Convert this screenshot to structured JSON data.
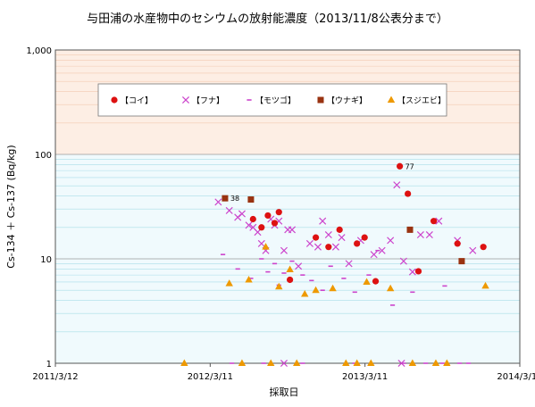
{
  "chart_data": {
    "type": "scatter",
    "title": "与田浦の水産物中のセシウムの放射能濃度（2013/11/8公表分まで）",
    "xlabel": "採取日",
    "ylabel": "Cs-134 ＋ Cs-137 (Bq/kg)",
    "yscale": "log",
    "ylim": [
      1,
      1000
    ],
    "xlim": [
      "2011/3/12",
      "2014/3/11"
    ],
    "y_ticks": [
      {
        "value": 1,
        "label": "1"
      },
      {
        "value": 10,
        "label": "10"
      },
      {
        "value": 100,
        "label": "100"
      },
      {
        "value": 1000,
        "label": "1,000"
      }
    ],
    "x_ticks": [
      {
        "value": "2011/3/12",
        "label": "2011/3/12"
      },
      {
        "value": "2012/3/11",
        "label": "2012/3/11"
      },
      {
        "value": "2013/3/11",
        "label": "2013/3/11"
      },
      {
        "value": "2014/3/11",
        "label": "2014/3/11"
      }
    ],
    "legend_position": "top",
    "series": [
      {
        "name": "【コイ】",
        "marker": "circle",
        "color": "#dd1111",
        "points": [
          {
            "x": "2012/6/20",
            "y": 24
          },
          {
            "x": "2012/7/10",
            "y": 20
          },
          {
            "x": "2012/7/25",
            "y": 26
          },
          {
            "x": "2012/8/10",
            "y": 22
          },
          {
            "x": "2012/8/20",
            "y": 28
          },
          {
            "x": "2012/9/15",
            "y": 6.3
          },
          {
            "x": "2012/11/15",
            "y": 16
          },
          {
            "x": "2012/12/15",
            "y": 13
          },
          {
            "x": "2013/1/10",
            "y": 19
          },
          {
            "x": "2013/2/20",
            "y": 14
          },
          {
            "x": "2013/3/10",
            "y": 16
          },
          {
            "x": "2013/4/5",
            "y": 6.1
          },
          {
            "x": "2013/6/1",
            "y": 77
          },
          {
            "x": "2013/6/20",
            "y": 42
          },
          {
            "x": "2013/7/15",
            "y": 7.6
          },
          {
            "x": "2013/8/20",
            "y": 23
          },
          {
            "x": "2013/10/15",
            "y": 14
          },
          {
            "x": "2013/12/15",
            "y": 13
          }
        ]
      },
      {
        "name": "【フナ】",
        "marker": "x",
        "color": "#cc44cc",
        "points": [
          {
            "x": "2012/3/30",
            "y": 35
          },
          {
            "x": "2012/4/25",
            "y": 29
          },
          {
            "x": "2012/5/15",
            "y": 25
          },
          {
            "x": "2012/5/25",
            "y": 27
          },
          {
            "x": "2012/6/10",
            "y": 21
          },
          {
            "x": "2012/6/20",
            "y": 20
          },
          {
            "x": "2012/7/1",
            "y": 18
          },
          {
            "x": "2012/7/10",
            "y": 14
          },
          {
            "x": "2012/7/20",
            "y": 12
          },
          {
            "x": "2012/8/1",
            "y": 24
          },
          {
            "x": "2012/8/10",
            "y": 21
          },
          {
            "x": "2012/8/20",
            "y": 23
          },
          {
            "x": "2012/9/1",
            "y": 12
          },
          {
            "x": "2012/9/10",
            "y": 19
          },
          {
            "x": "2012/9/20",
            "y": 19
          },
          {
            "x": "2012/10/5",
            "y": 8.5
          },
          {
            "x": "2012/11/1",
            "y": 14
          },
          {
            "x": "2012/11/20",
            "y": 13
          },
          {
            "x": "2012/12/1",
            "y": 23
          },
          {
            "x": "2012/12/15",
            "y": 17
          },
          {
            "x": "2013/1/1",
            "y": 13
          },
          {
            "x": "2013/1/15",
            "y": 16
          },
          {
            "x": "2013/2/1",
            "y": 9
          },
          {
            "x": "2013/3/1",
            "y": 15
          },
          {
            "x": "2013/4/1",
            "y": 11
          },
          {
            "x": "2013/4/20",
            "y": 12
          },
          {
            "x": "2013/5/10",
            "y": 15
          },
          {
            "x": "2013/5/25",
            "y": 51
          },
          {
            "x": "2013/6/10",
            "y": 9.5
          },
          {
            "x": "2013/7/1",
            "y": 7.5
          },
          {
            "x": "2013/7/20",
            "y": 17
          },
          {
            "x": "2013/8/10",
            "y": 17
          },
          {
            "x": "2013/9/1",
            "y": 23
          },
          {
            "x": "2013/10/15",
            "y": 15
          },
          {
            "x": "2013/11/20",
            "y": 12
          },
          {
            "x": "2012/9/1",
            "y": 1
          },
          {
            "x": "2013/6/5",
            "y": 1
          }
        ]
      },
      {
        "name": "【モツゴ】",
        "marker": "dash",
        "color": "#cc44cc",
        "points": [
          {
            "x": "2012/4/10",
            "y": 11
          },
          {
            "x": "2012/5/15",
            "y": 8
          },
          {
            "x": "2012/6/15",
            "y": 6.5
          },
          {
            "x": "2012/7/10",
            "y": 10
          },
          {
            "x": "2012/7/25",
            "y": 7.5
          },
          {
            "x": "2012/8/10",
            "y": 9
          },
          {
            "x": "2012/8/20",
            "y": 5.6
          },
          {
            "x": "2012/9/1",
            "y": 7.3
          },
          {
            "x": "2012/9/20",
            "y": 9.5
          },
          {
            "x": "2012/10/15",
            "y": 7
          },
          {
            "x": "2012/11/5",
            "y": 6.2
          },
          {
            "x": "2012/12/1",
            "y": 5
          },
          {
            "x": "2012/12/20",
            "y": 8.5
          },
          {
            "x": "2013/1/20",
            "y": 6.5
          },
          {
            "x": "2013/2/15",
            "y": 4.8
          },
          {
            "x": "2013/3/20",
            "y": 7
          },
          {
            "x": "2013/4/10",
            "y": 12
          },
          {
            "x": "2013/5/15",
            "y": 3.6
          },
          {
            "x": "2013/7/1",
            "y": 4.8
          },
          {
            "x": "2013/9/15",
            "y": 5.5
          },
          {
            "x": "2012/5/1",
            "y": 1
          },
          {
            "x": "2012/7/15",
            "y": 1
          },
          {
            "x": "2012/10/15",
            "y": 1
          },
          {
            "x": "2013/2/15",
            "y": 1
          },
          {
            "x": "2013/6/10",
            "y": 1
          },
          {
            "x": "2013/8/1",
            "y": 1
          },
          {
            "x": "2013/9/10",
            "y": 1
          },
          {
            "x": "2013/10/20",
            "y": 1
          },
          {
            "x": "2013/11/10",
            "y": 1
          }
        ]
      },
      {
        "name": "【ウナギ】",
        "marker": "square",
        "color": "#993311",
        "points": [
          {
            "x": "2012/4/15",
            "y": 38
          },
          {
            "x": "2012/6/15",
            "y": 37
          },
          {
            "x": "2013/6/25",
            "y": 19
          },
          {
            "x": "2013/10/25",
            "y": 9.5
          }
        ]
      },
      {
        "name": "【スジエビ】",
        "marker": "triangle",
        "color": "#ee9900",
        "points": [
          {
            "x": "2012/4/25",
            "y": 5.8
          },
          {
            "x": "2012/6/10",
            "y": 6.3
          },
          {
            "x": "2012/7/20",
            "y": 13
          },
          {
            "x": "2012/8/20",
            "y": 5.4
          },
          {
            "x": "2012/9/15",
            "y": 7.9
          },
          {
            "x": "2012/10/20",
            "y": 4.6
          },
          {
            "x": "2012/11/15",
            "y": 5
          },
          {
            "x": "2012/12/25",
            "y": 5.2
          },
          {
            "x": "2013/3/15",
            "y": 6
          },
          {
            "x": "2013/5/10",
            "y": 5.2
          },
          {
            "x": "2013/12/20",
            "y": 5.5
          },
          {
            "x": "2012/1/10",
            "y": 1
          },
          {
            "x": "2012/5/25",
            "y": 1
          },
          {
            "x": "2012/8/1",
            "y": 1
          },
          {
            "x": "2012/10/1",
            "y": 1
          },
          {
            "x": "2013/1/25",
            "y": 1
          },
          {
            "x": "2013/2/20",
            "y": 1
          },
          {
            "x": "2013/3/25",
            "y": 1
          },
          {
            "x": "2013/7/1",
            "y": 1
          },
          {
            "x": "2013/8/25",
            "y": 1
          },
          {
            "x": "2013/9/20",
            "y": 1
          }
        ]
      }
    ],
    "annotations": [
      {
        "x": "2012/4/15",
        "y": 38,
        "text": "38"
      },
      {
        "x": "2013/6/1",
        "y": 77,
        "text": "77"
      }
    ],
    "background_bands": [
      {
        "from": 100,
        "to": 1000,
        "color": "#fdeee4"
      },
      {
        "from": 1,
        "to": 100,
        "color": "#f0fafd"
      }
    ]
  }
}
